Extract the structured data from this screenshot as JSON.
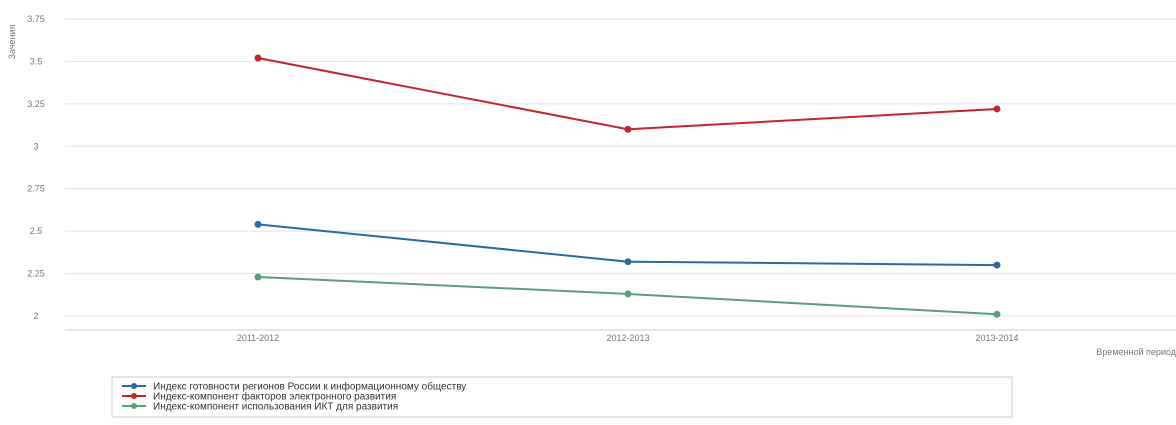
{
  "chart_data": {
    "type": "line",
    "title": "",
    "xlabel": "Временной период",
    "ylabel": "Зачения",
    "categories": [
      "2011-2012",
      "2012-2013",
      "2013-2014"
    ],
    "y_tick_labels": [
      "2",
      "2.25",
      "2.5",
      "2.75",
      "3",
      "3.25",
      "3.5",
      "3.75"
    ],
    "y_ticks": [
      2,
      2.25,
      2.5,
      2.75,
      3,
      3.25,
      3.5,
      3.75
    ],
    "ylim": [
      2,
      3.75
    ],
    "grid": true,
    "legend_position": "bottom-left",
    "series": [
      {
        "name": "Индекс готовности регионов России к информационному обществу",
        "color": "#2b6a9e",
        "values": [
          2.54,
          2.32,
          2.3
        ]
      },
      {
        "name": "Индекс-компонент факторов электронного развития",
        "color": "#c0282d",
        "values": [
          3.52,
          3.1,
          3.22
        ]
      },
      {
        "name": "Индекс-компонент использования ИКТ для развития",
        "color": "#5a9e77",
        "values": [
          2.23,
          2.13,
          2.01
        ]
      }
    ]
  }
}
